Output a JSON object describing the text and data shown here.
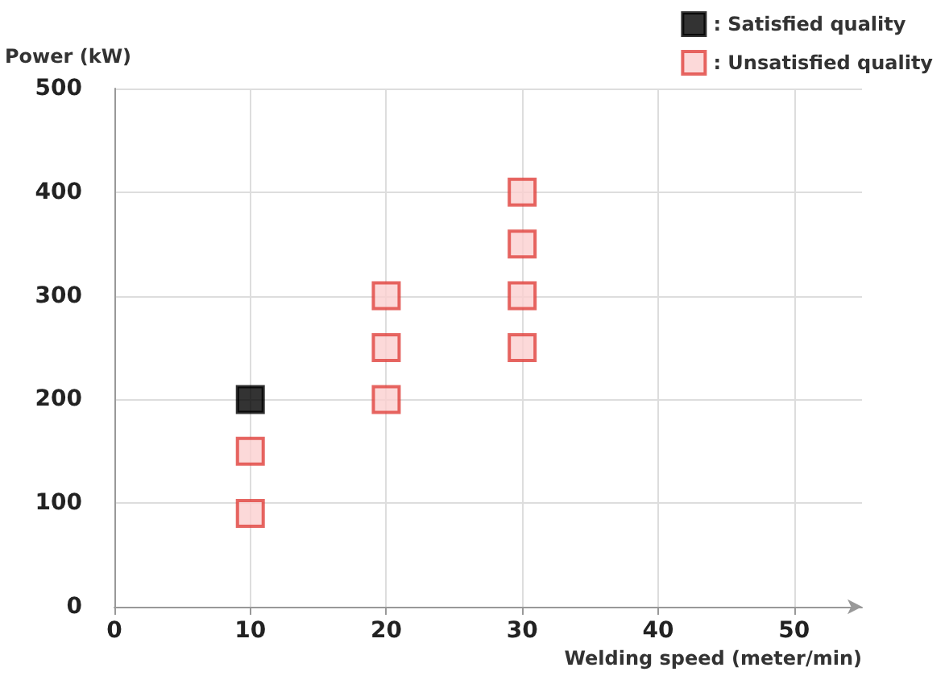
{
  "chart_data": {
    "type": "scatter",
    "xlabel": "Welding speed (meter/min)",
    "ylabel": "Power (kW)",
    "xlim": [
      0,
      55
    ],
    "xticks": [
      0,
      10,
      20,
      30,
      40,
      50
    ],
    "ylim": [
      0,
      500
    ],
    "yticks": [
      0,
      100,
      200,
      300,
      400,
      500
    ],
    "grid": true,
    "legend": "top right",
    "marker": "square",
    "series": [
      {
        "name": ": Satisfied quality",
        "color": "#000000",
        "x": [
          10
        ],
        "values": [
          200
        ]
      },
      {
        "name": ": Unsatisfied quality",
        "color": "#e0413c",
        "x": [
          10,
          10,
          20,
          20,
          20,
          30,
          30,
          30,
          30
        ],
        "values": [
          150,
          90,
          200,
          250,
          300,
          250,
          300,
          350,
          400
        ]
      }
    ]
  }
}
